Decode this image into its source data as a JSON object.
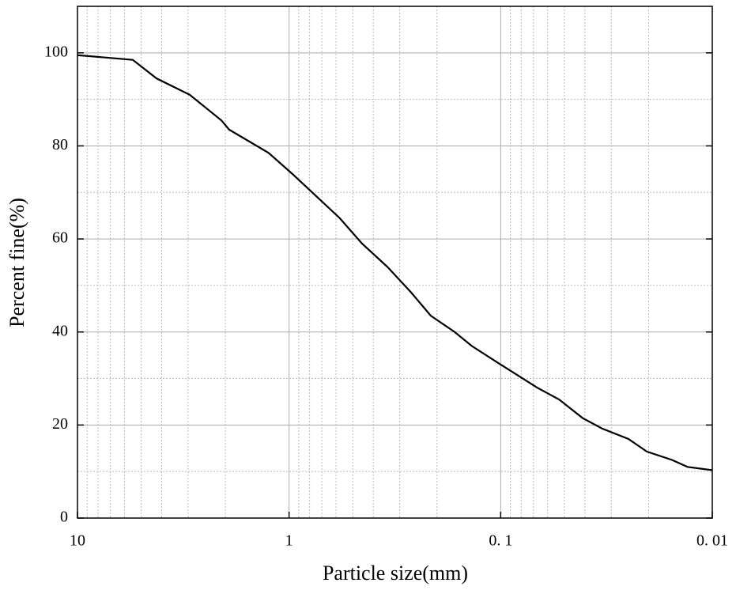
{
  "chart_data": {
    "type": "line",
    "x_label": "Particle size(mm)",
    "y_label": "Percent fine(%)",
    "x": [
      10,
      5.48,
      4.23,
      2.95,
      2.09,
      1.92,
      1.25,
      0.966,
      0.577,
      0.452,
      0.343,
      0.265,
      0.214,
      0.165,
      0.137,
      0.1,
      0.067,
      0.053,
      0.041,
      0.033,
      0.0249,
      0.0204,
      0.0155,
      0.0131,
      0.01
    ],
    "values": [
      99.5,
      98.5,
      94.5,
      91,
      85.5,
      83.5,
      78.5,
      74,
      64.5,
      59,
      54,
      48.5,
      43.5,
      40,
      37,
      33,
      28,
      25.5,
      21.5,
      19.2,
      17,
      14.3,
      12.5,
      11,
      10.3
    ],
    "color": "#000000",
    "xscale": "log",
    "xlim": [
      10,
      0.01
    ],
    "xticks": [
      10,
      1,
      {
        "value": 0.1,
        "label": "0. 1"
      },
      {
        "value": 0.01,
        "label": "0. 01"
      }
    ],
    "ylim": [
      0,
      110
    ],
    "yticks": [
      0,
      20,
      40,
      60,
      80,
      100
    ],
    "grid": true
  }
}
